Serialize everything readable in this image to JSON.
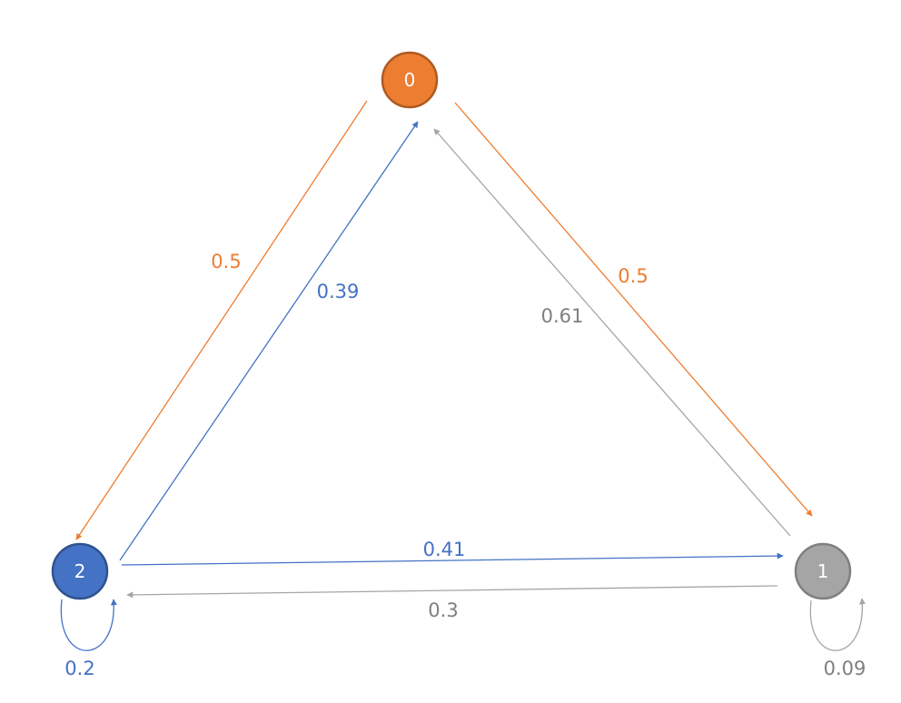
{
  "colors": {
    "orange": "#ED7D31",
    "orange_stroke": "#AE5A21",
    "blue": "#4472C4",
    "blue_stroke": "#2F528F",
    "gray": "#A5A5A5",
    "gray_stroke": "#7F7F7F",
    "background": "#FFFFFF"
  },
  "nodes": [
    {
      "id": "0",
      "label": "0",
      "color": "orange"
    },
    {
      "id": "1",
      "label": "1",
      "color": "gray"
    },
    {
      "id": "2",
      "label": "2",
      "color": "blue"
    }
  ],
  "edges": [
    {
      "from": "0",
      "to": "2",
      "label": "0.5",
      "color": "orange"
    },
    {
      "from": "0",
      "to": "1",
      "label": "0.5",
      "color": "orange"
    },
    {
      "from": "2",
      "to": "0",
      "label": "0.39",
      "color": "blue"
    },
    {
      "from": "2",
      "to": "1",
      "label": "0.41",
      "color": "blue"
    },
    {
      "from": "2",
      "to": "2",
      "label": "0.2",
      "color": "blue"
    },
    {
      "from": "1",
      "to": "0",
      "label": "0.61",
      "color": "gray"
    },
    {
      "from": "1",
      "to": "2",
      "label": "0.3",
      "color": "gray"
    },
    {
      "from": "1",
      "to": "1",
      "label": "0.09",
      "color": "gray"
    }
  ]
}
